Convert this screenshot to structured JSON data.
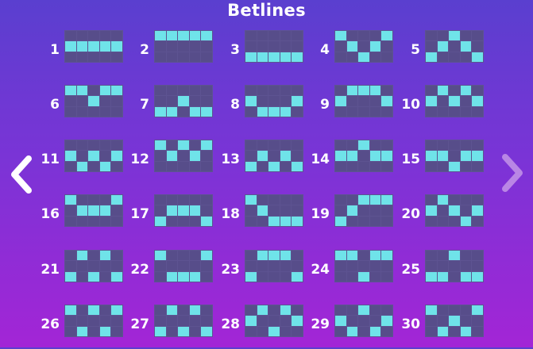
{
  "title": "Betlines",
  "colors": {
    "active_cell": "#6fe3e9",
    "inactive_cell": "#574d8a",
    "grid_line": "#5d5391"
  },
  "nav": {
    "prev_icon": "chevron-left-icon",
    "next_icon": "chevron-right-icon"
  },
  "lines": [
    {
      "number": "1",
      "rows": [
        1,
        1,
        1,
        1,
        1
      ]
    },
    {
      "number": "2",
      "rows": [
        0,
        0,
        0,
        0,
        0
      ]
    },
    {
      "number": "3",
      "rows": [
        2,
        2,
        2,
        2,
        2
      ]
    },
    {
      "number": "4",
      "rows": [
        0,
        1,
        2,
        1,
        0
      ]
    },
    {
      "number": "5",
      "rows": [
        2,
        1,
        0,
        1,
        2
      ]
    },
    {
      "number": "6",
      "rows": [
        0,
        0,
        1,
        0,
        0
      ]
    },
    {
      "number": "7",
      "rows": [
        2,
        2,
        1,
        2,
        2
      ]
    },
    {
      "number": "8",
      "rows": [
        1,
        2,
        2,
        2,
        1
      ]
    },
    {
      "number": "9",
      "rows": [
        1,
        0,
        0,
        0,
        1
      ]
    },
    {
      "number": "10",
      "rows": [
        1,
        0,
        1,
        0,
        1
      ]
    },
    {
      "number": "11",
      "rows": [
        1,
        2,
        1,
        2,
        1
      ]
    },
    {
      "number": "12",
      "rows": [
        0,
        1,
        0,
        1,
        0
      ]
    },
    {
      "number": "13",
      "rows": [
        2,
        1,
        2,
        1,
        2
      ]
    },
    {
      "number": "14",
      "rows": [
        1,
        1,
        0,
        1,
        1
      ]
    },
    {
      "number": "15",
      "rows": [
        1,
        1,
        2,
        1,
        1
      ]
    },
    {
      "number": "16",
      "rows": [
        0,
        1,
        1,
        1,
        0
      ]
    },
    {
      "number": "17",
      "rows": [
        2,
        1,
        1,
        1,
        2
      ]
    },
    {
      "number": "18",
      "rows": [
        0,
        1,
        2,
        2,
        2
      ]
    },
    {
      "number": "19",
      "rows": [
        2,
        1,
        0,
        0,
        0
      ]
    },
    {
      "number": "20",
      "rows": [
        1,
        0,
        1,
        2,
        1
      ]
    },
    {
      "number": "21",
      "rows": [
        2,
        0,
        2,
        0,
        2
      ]
    },
    {
      "number": "22",
      "rows": [
        0,
        2,
        2,
        2,
        0
      ]
    },
    {
      "number": "23",
      "rows": [
        2,
        0,
        0,
        0,
        2
      ]
    },
    {
      "number": "24",
      "rows": [
        0,
        0,
        2,
        0,
        0
      ]
    },
    {
      "number": "25",
      "rows": [
        2,
        2,
        0,
        2,
        2
      ]
    },
    {
      "number": "26",
      "rows": [
        0,
        2,
        0,
        2,
        0
      ]
    },
    {
      "number": "27",
      "rows": [
        2,
        0,
        2,
        0,
        2
      ]
    },
    {
      "number": "28",
      "rows": [
        1,
        0,
        2,
        0,
        1
      ]
    },
    {
      "number": "29",
      "rows": [
        1,
        2,
        0,
        2,
        1
      ]
    },
    {
      "number": "30",
      "rows": [
        0,
        2,
        1,
        2,
        0
      ]
    }
  ]
}
